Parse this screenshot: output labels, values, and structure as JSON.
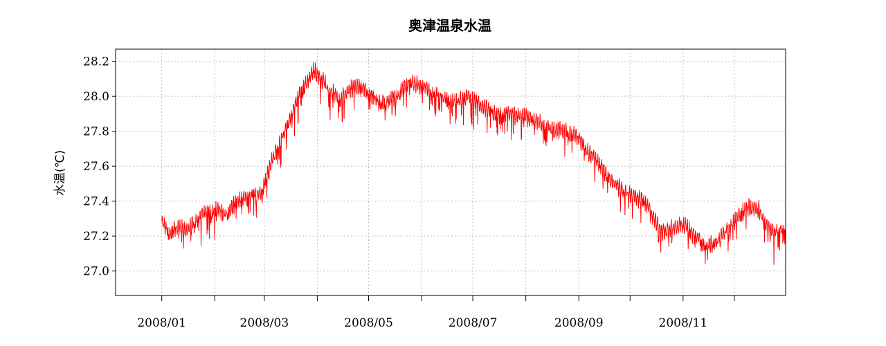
{
  "chart_data": {
    "type": "line",
    "title": "奥津温泉水温",
    "ylabel": "水温(℃)",
    "xlabel": "",
    "xlim": [
      "2007-12-05",
      "2008-12-31"
    ],
    "ylim": [
      26.86,
      28.27
    ],
    "y_ticks": [
      "27.0",
      "27.2",
      "27.4",
      "27.6",
      "27.8",
      "28.0",
      "28.2"
    ],
    "x_ticks": [
      {
        "date": "2008-01-01",
        "label": "2008/01"
      },
      {
        "date": "2008-02-01",
        "label": ""
      },
      {
        "date": "2008-03-01",
        "label": "2008/03"
      },
      {
        "date": "2008-04-01",
        "label": ""
      },
      {
        "date": "2008-05-01",
        "label": "2008/05"
      },
      {
        "date": "2008-06-01",
        "label": ""
      },
      {
        "date": "2008-07-01",
        "label": "2008/07"
      },
      {
        "date": "2008-08-01",
        "label": ""
      },
      {
        "date": "2008-09-01",
        "label": "2008/09"
      },
      {
        "date": "2008-10-01",
        "label": ""
      },
      {
        "date": "2008-11-01",
        "label": "2008/11"
      },
      {
        "date": "2008-12-01",
        "label": ""
      }
    ],
    "grid": true,
    "series": [
      {
        "color": "#ff0000",
        "x": [
          "2008-01-01",
          "2008-01-05",
          "2008-01-10",
          "2008-01-15",
          "2008-01-20",
          "2008-01-25",
          "2008-02-01",
          "2008-02-07",
          "2008-02-14",
          "2008-02-21",
          "2008-02-28",
          "2008-03-05",
          "2008-03-12",
          "2008-03-18",
          "2008-03-22",
          "2008-03-26",
          "2008-03-30",
          "2008-04-05",
          "2008-04-10",
          "2008-04-15",
          "2008-04-20",
          "2008-04-27",
          "2008-05-05",
          "2008-05-12",
          "2008-05-20",
          "2008-05-26",
          "2008-06-01",
          "2008-06-08",
          "2008-06-15",
          "2008-06-22",
          "2008-06-28",
          "2008-07-03",
          "2008-07-10",
          "2008-07-18",
          "2008-07-25",
          "2008-08-01",
          "2008-08-08",
          "2008-08-15",
          "2008-08-22",
          "2008-08-29",
          "2008-09-05",
          "2008-09-12",
          "2008-09-20",
          "2008-09-28",
          "2008-10-03",
          "2008-10-10",
          "2008-10-15",
          "2008-10-20",
          "2008-10-25",
          "2008-11-01",
          "2008-11-08",
          "2008-11-15",
          "2008-11-22",
          "2008-11-29",
          "2008-12-05",
          "2008-12-10",
          "2008-12-15",
          "2008-12-20",
          "2008-12-25",
          "2008-12-31"
        ],
        "y": [
          27.28,
          27.22,
          27.25,
          27.24,
          27.27,
          27.33,
          27.35,
          27.33,
          27.4,
          27.43,
          27.45,
          27.62,
          27.78,
          27.92,
          28.02,
          28.08,
          28.15,
          28.08,
          28.02,
          27.98,
          28.04,
          28.06,
          27.98,
          27.96,
          28.03,
          28.08,
          28.06,
          28.02,
          27.98,
          27.97,
          28.0,
          27.97,
          27.92,
          27.89,
          27.9,
          27.88,
          27.85,
          27.82,
          27.8,
          27.79,
          27.7,
          27.62,
          27.52,
          27.45,
          27.43,
          27.4,
          27.3,
          27.22,
          27.25,
          27.27,
          27.2,
          27.14,
          27.18,
          27.26,
          27.34,
          27.37,
          27.36,
          27.25,
          27.22,
          27.24
        ]
      }
    ]
  }
}
